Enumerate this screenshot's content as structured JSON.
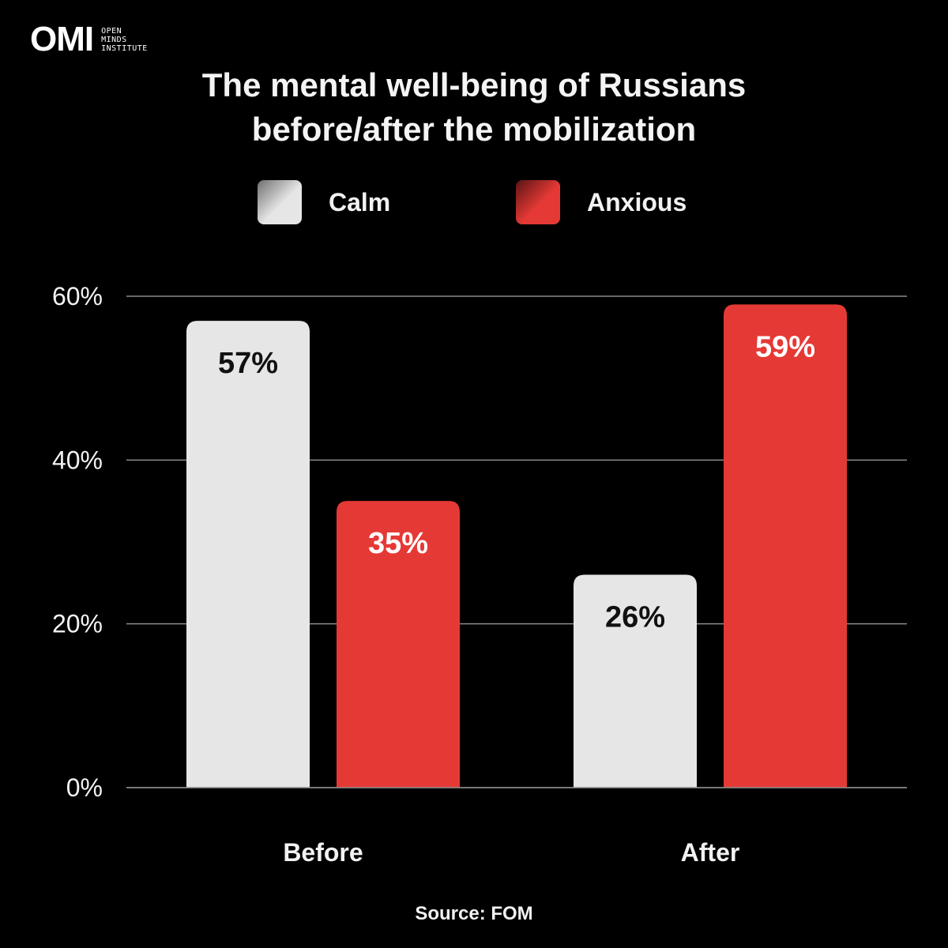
{
  "brand": {
    "mark": "OMI",
    "name_lines": [
      "OPEN",
      "MINDS",
      "INSTITUTE"
    ]
  },
  "title_lines": [
    "The mental well-being of Russians",
    "before/after the mobilization"
  ],
  "source": "Source: FOM",
  "colors": {
    "background": "#000000",
    "calm": "#e6e6e6",
    "anxious": "#e53935",
    "grid": "#8a8a8a",
    "text": "#f2f2f2"
  },
  "chart_data": {
    "type": "bar",
    "categories": [
      "Before",
      "After"
    ],
    "series": [
      {
        "name": "Calm",
        "values": [
          57,
          26
        ],
        "labels": [
          "57%",
          "26%"
        ]
      },
      {
        "name": "Anxious",
        "values": [
          35,
          59
        ],
        "labels": [
          "35%",
          "59%"
        ]
      }
    ],
    "y_ticks": [
      0,
      20,
      40,
      60
    ],
    "y_tick_labels": [
      "0%",
      "20%",
      "40%",
      "60%"
    ],
    "ylim": [
      0,
      60
    ],
    "grid": true,
    "legend_position": "top"
  }
}
